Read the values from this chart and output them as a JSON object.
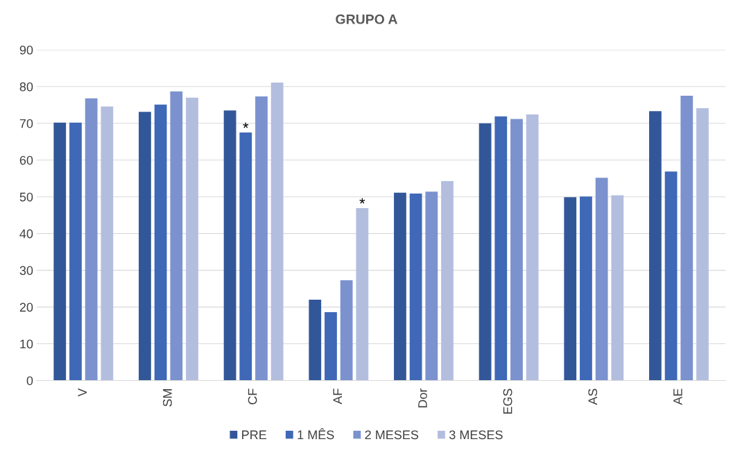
{
  "chart_data": {
    "type": "bar",
    "title": "GRUPO A",
    "categories": [
      "V",
      "SM",
      "CF",
      "AF",
      "Dor",
      "EGS",
      "AS",
      "AE"
    ],
    "series": [
      {
        "name": "PRE",
        "color": "#325799",
        "values": [
          70.2,
          73.1,
          73.5,
          22.0,
          51.1,
          70.0,
          49.9,
          73.3
        ]
      },
      {
        "name": "1 MÊS",
        "color": "#3f68b7",
        "values": [
          70.2,
          75.1,
          67.5,
          18.6,
          50.9,
          71.9,
          50.1,
          56.9
        ],
        "value_labels": [
          null,
          null,
          "*",
          null,
          null,
          null,
          null,
          null
        ]
      },
      {
        "name": "2 MESES",
        "color": "#7b92ce",
        "values": [
          76.8,
          78.7,
          77.3,
          27.3,
          51.4,
          71.2,
          55.2,
          77.5
        ]
      },
      {
        "name": "3 MESES",
        "color": "#b3bedf",
        "values": [
          74.6,
          77.0,
          81.1,
          46.9,
          54.3,
          72.4,
          50.4,
          74.1
        ],
        "value_labels": [
          null,
          null,
          null,
          "*",
          null,
          null,
          null,
          null
        ]
      }
    ],
    "ylim": [
      0,
      90
    ],
    "yticks": [
      0,
      10,
      20,
      30,
      40,
      50,
      60,
      70,
      80,
      90
    ],
    "grid": "y",
    "legend": "bottom"
  }
}
